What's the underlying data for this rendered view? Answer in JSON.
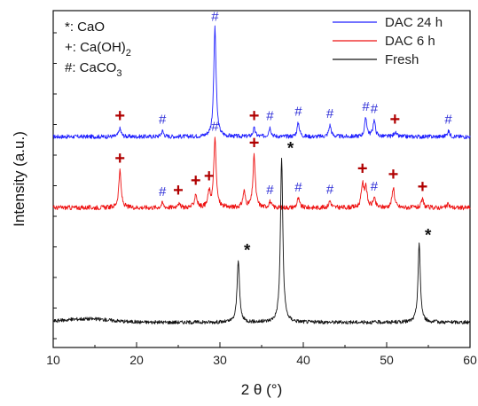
{
  "chart_data": {
    "type": "line",
    "xlabel": "2 θ (°)",
    "ylabel": "Intensity (a.u.)",
    "xlim": [
      10,
      60
    ],
    "xticks": [
      "10",
      "20",
      "30",
      "40",
      "50",
      "60"
    ],
    "y_tick_labels_shown": false,
    "grid": false,
    "legend": {
      "placement": "top-right",
      "entries": [
        "DAC 24 h",
        "DAC 6 h",
        "Fresh"
      ]
    },
    "key": {
      "placement": "top-left",
      "lines": [
        {
          "symbol": "*",
          "text": ": CaO"
        },
        {
          "symbol": "+",
          "text": ": Ca(OH)",
          "subscript": "2"
        },
        {
          "symbol": "#",
          "text": ": CaCO",
          "subscript": "3"
        }
      ]
    },
    "series": [
      {
        "name": "DAC 24 h",
        "color": "#1f1fff",
        "baseline": 1.62,
        "noise": 0.018,
        "peaks": [
          {
            "x": 18.0,
            "h": 0.07
          },
          {
            "x": 23.1,
            "h": 0.05
          },
          {
            "x": 29.4,
            "h": 0.95
          },
          {
            "x": 34.1,
            "h": 0.07
          },
          {
            "x": 36.0,
            "h": 0.08
          },
          {
            "x": 39.4,
            "h": 0.12
          },
          {
            "x": 43.2,
            "h": 0.1
          },
          {
            "x": 47.5,
            "h": 0.16
          },
          {
            "x": 48.5,
            "h": 0.14
          },
          {
            "x": 51.0,
            "h": 0.04
          },
          {
            "x": 57.4,
            "h": 0.05
          }
        ]
      },
      {
        "name": "DAC 6 h",
        "color": "#ee1111",
        "baseline": 1.0,
        "noise": 0.02,
        "peaks": [
          {
            "x": 18.0,
            "h": 0.32
          },
          {
            "x": 23.1,
            "h": 0.04
          },
          {
            "x": 25.0,
            "h": 0.04
          },
          {
            "x": 27.1,
            "h": 0.12
          },
          {
            "x": 28.7,
            "h": 0.13
          },
          {
            "x": 29.4,
            "h": 0.6
          },
          {
            "x": 32.9,
            "h": 0.14
          },
          {
            "x": 34.1,
            "h": 0.45
          },
          {
            "x": 36.0,
            "h": 0.05
          },
          {
            "x": 39.4,
            "h": 0.08
          },
          {
            "x": 43.2,
            "h": 0.06
          },
          {
            "x": 47.1,
            "h": 0.2
          },
          {
            "x": 47.5,
            "h": 0.18
          },
          {
            "x": 48.5,
            "h": 0.08
          },
          {
            "x": 50.8,
            "h": 0.18
          },
          {
            "x": 54.3,
            "h": 0.07
          },
          {
            "x": 57.4,
            "h": 0.03
          }
        ]
      },
      {
        "name": "Fresh",
        "color": "#111111",
        "baseline": 0.0,
        "noise": 0.016,
        "peaks": [
          {
            "x": 32.2,
            "h": 0.55
          },
          {
            "x": 37.4,
            "h": 1.44
          },
          {
            "x": 53.9,
            "h": 0.68
          }
        ]
      }
    ],
    "markers": [
      {
        "series": "DAC 24 h",
        "symbol": "+",
        "x": 18.0
      },
      {
        "series": "DAC 24 h",
        "symbol": "#",
        "x": 23.1
      },
      {
        "series": "DAC 24 h",
        "symbol": "#",
        "x": 29.4
      },
      {
        "series": "DAC 24 h",
        "symbol": "+",
        "x": 34.1
      },
      {
        "series": "DAC 24 h",
        "symbol": "#",
        "x": 36.0
      },
      {
        "series": "DAC 24 h",
        "symbol": "#",
        "x": 39.4
      },
      {
        "series": "DAC 24 h",
        "symbol": "#",
        "x": 43.2
      },
      {
        "series": "DAC 24 h",
        "symbol": "#",
        "x": 47.5
      },
      {
        "series": "DAC 24 h",
        "symbol": "#",
        "x": 48.5
      },
      {
        "series": "DAC 24 h",
        "symbol": "+",
        "x": 51.0
      },
      {
        "series": "DAC 24 h",
        "symbol": "#",
        "x": 57.4
      },
      {
        "series": "DAC 6 h",
        "symbol": "+",
        "x": 18.0
      },
      {
        "series": "DAC 6 h",
        "symbol": "#",
        "x": 23.1
      },
      {
        "series": "DAC 6 h",
        "symbol": "+",
        "x": 25.0
      },
      {
        "series": "DAC 6 h",
        "symbol": "+",
        "x": 27.1
      },
      {
        "series": "DAC 6 h",
        "symbol": "+",
        "x": 28.7
      },
      {
        "series": "DAC 6 h",
        "symbol": "#",
        "x": 29.4
      },
      {
        "series": "DAC 6 h",
        "symbol": "+",
        "x": 34.1
      },
      {
        "series": "DAC 6 h",
        "symbol": "#",
        "x": 36.0
      },
      {
        "series": "DAC 6 h",
        "symbol": "#",
        "x": 39.4
      },
      {
        "series": "DAC 6 h",
        "symbol": "#",
        "x": 43.2
      },
      {
        "series": "DAC 6 h",
        "symbol": "+",
        "x": 47.1
      },
      {
        "series": "DAC 6 h",
        "symbol": "#",
        "x": 48.5
      },
      {
        "series": "DAC 6 h",
        "symbol": "+",
        "x": 50.8
      },
      {
        "series": "DAC 6 h",
        "symbol": "+",
        "x": 54.3
      },
      {
        "series": "Fresh",
        "symbol": "*",
        "x": 32.2
      },
      {
        "series": "Fresh",
        "symbol": "*",
        "x": 37.4
      },
      {
        "series": "Fresh",
        "symbol": "*",
        "x": 53.9
      }
    ],
    "marker_colors": {
      "#": "#2b2bd6",
      "+": "#b00000",
      "*": "#111111"
    }
  }
}
